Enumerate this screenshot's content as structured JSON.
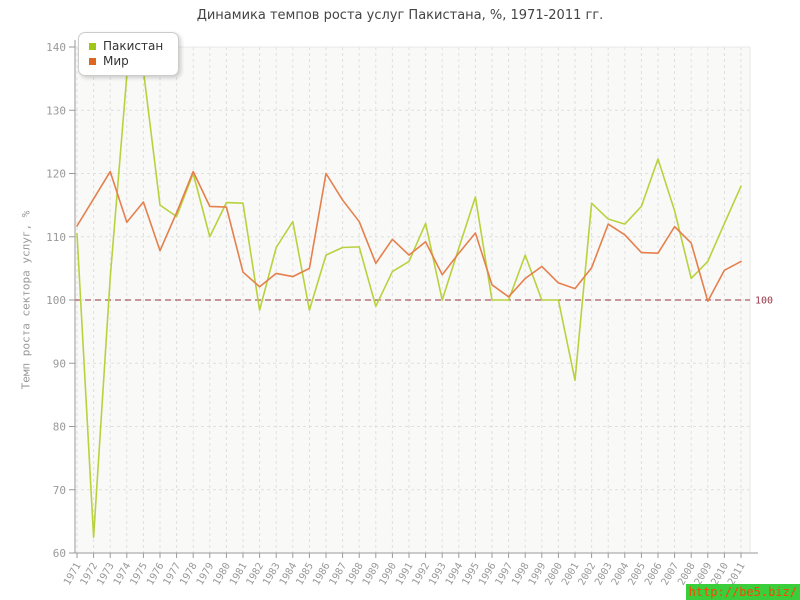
{
  "title": "Динамика темпов роста услуг Пакистана, %, 1971-2011 гг.",
  "y_axis_title": "Темп роста сектора услуг, %",
  "watermark": "http://be5.biz/",
  "reference_line": {
    "value": 100,
    "label": "100",
    "color": "#993344"
  },
  "colors": {
    "pakistan": "#b8d23e",
    "world": "#e5804c",
    "pakistan_swatch": "#9fc718",
    "world_swatch": "#dd6620",
    "grid": "#e0e0e0",
    "axis": "#9a9a9a",
    "tick_label": "#999999",
    "plot_bg": "#f9f9f8"
  },
  "chart_data": {
    "type": "line",
    "x": [
      1971,
      1972,
      1973,
      1974,
      1975,
      1976,
      1977,
      1978,
      1979,
      1980,
      1981,
      1982,
      1983,
      1984,
      1985,
      1986,
      1987,
      1988,
      1989,
      1990,
      1991,
      1992,
      1993,
      1994,
      1995,
      1996,
      1997,
      1998,
      1999,
      2000,
      2001,
      2002,
      2003,
      2004,
      2005,
      2006,
      2007,
      2008,
      2009,
      2010,
      2011
    ],
    "series": [
      {
        "name": "Пакистан",
        "values": [
          110.5,
          62.5,
          103.5,
          135.5,
          136.3,
          115.0,
          113.2,
          120.0,
          110.0,
          115.4,
          115.3,
          98.4,
          108.3,
          112.4,
          98.4,
          107.1,
          108.3,
          108.4,
          99.0,
          104.5,
          106.1,
          112.1,
          100.0,
          108.2,
          116.3,
          100.0,
          100.0,
          107.1,
          100.0,
          100.0,
          87.3,
          115.3,
          112.8,
          112.0,
          114.8,
          122.3,
          114.1,
          103.4,
          106.1,
          112.1,
          118.0
        ]
      },
      {
        "name": "Мир",
        "values": [
          111.7,
          116.0,
          120.3,
          112.3,
          115.5,
          107.8,
          113.8,
          120.3,
          114.8,
          114.7,
          104.4,
          102.1,
          104.2,
          103.7,
          105.0,
          120.0,
          115.8,
          112.4,
          105.8,
          109.6,
          107.1,
          109.2,
          104.0,
          107.4,
          110.6,
          102.4,
          100.5,
          103.4,
          105.3,
          102.7,
          101.8,
          105.1,
          112.0,
          110.3,
          107.5,
          107.4,
          111.6,
          109.0,
          99.8,
          104.7,
          106.1
        ]
      }
    ],
    "ylim": [
      60,
      140
    ],
    "yticks": [
      60,
      70,
      80,
      90,
      100,
      110,
      120,
      130,
      140
    ],
    "grid": true,
    "legend_position": "top-left"
  }
}
